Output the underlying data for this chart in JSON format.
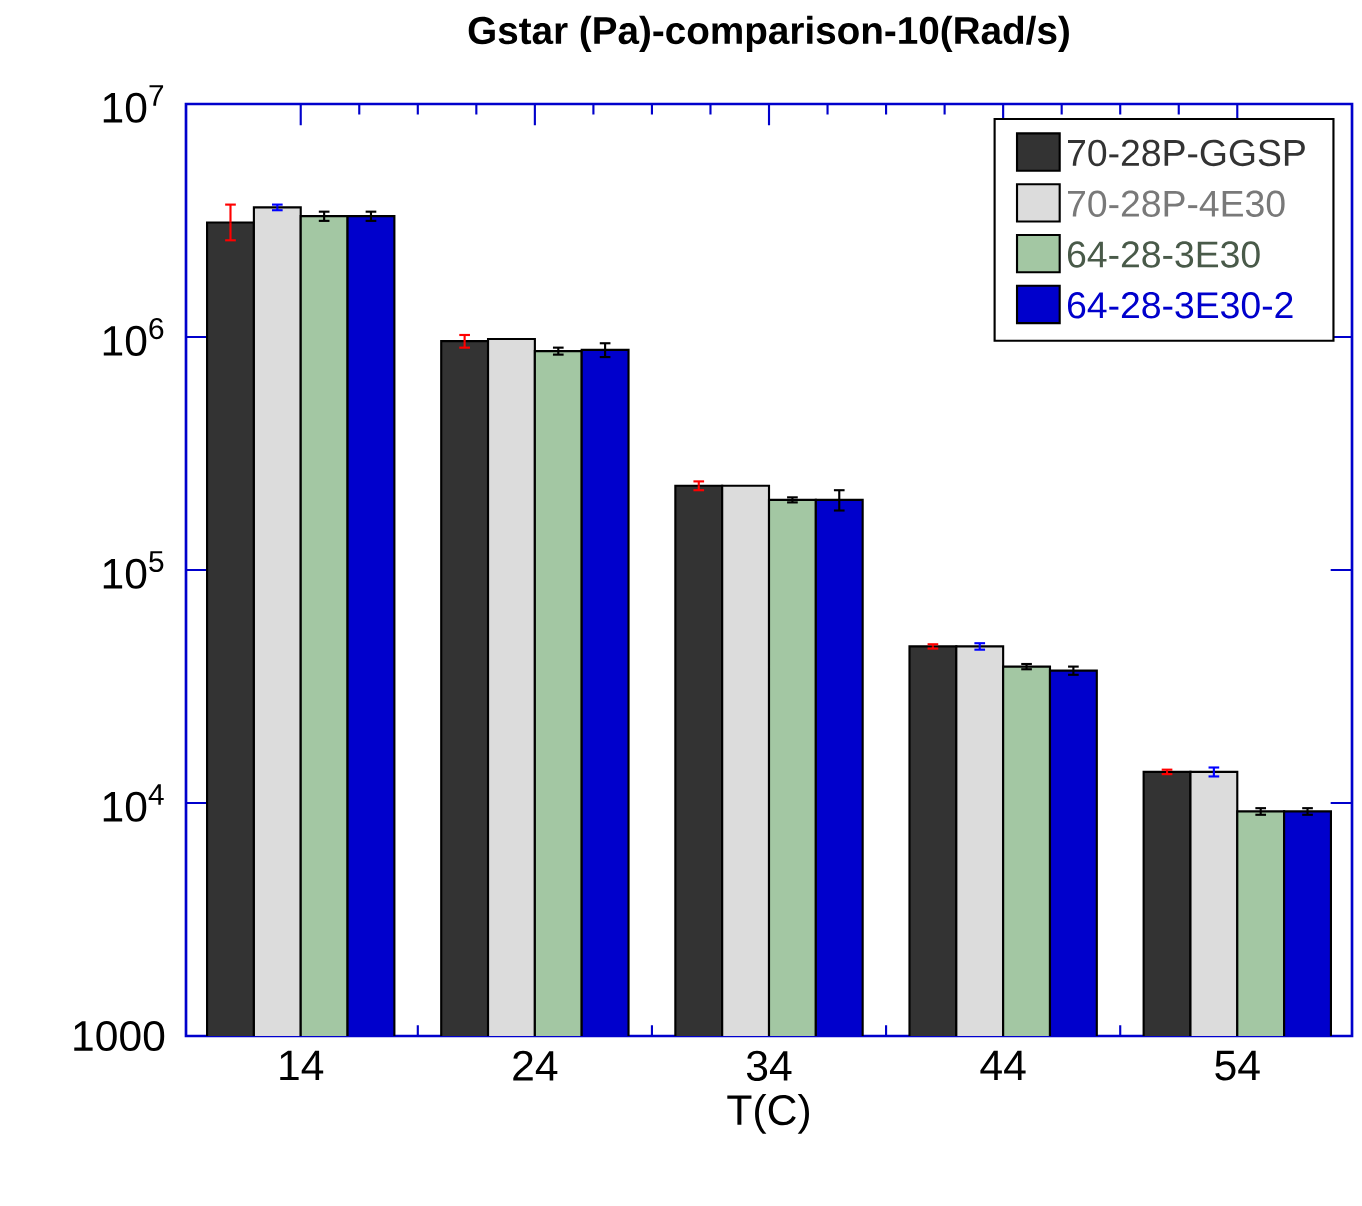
{
  "chart_data": {
    "type": "bar",
    "title": "Gstar (Pa)-comparison-10(Rad/s)",
    "xlabel": "T(C)",
    "categories": [
      "14",
      "24",
      "34",
      "44",
      "54"
    ],
    "series": [
      {
        "name": "70-28P-GGSP",
        "color": "#333333",
        "values": [
          3100000,
          960000,
          230000,
          47000,
          13600
        ],
        "errors": [
          [
            2600000,
            3700000
          ],
          60000,
          10000,
          1000,
          300
        ]
      },
      {
        "name": "70-28P-4E30",
        "color": "#dcdcdc",
        "values": [
          3600000,
          980000,
          230000,
          47000,
          13600
        ],
        "errors": [
          100000,
          null,
          null,
          1500,
          600
        ]
      },
      {
        "name": "64-28-3E30",
        "color": "#a3c7a3",
        "values": [
          3300000,
          870000,
          200000,
          38500,
          9200
        ],
        "errors": [
          150000,
          30000,
          5000,
          1000,
          300
        ]
      },
      {
        "name": "64-28-3E30-2",
        "color": "#0000cc",
        "values": [
          3300000,
          880000,
          200000,
          37000,
          9200
        ],
        "errors": [
          150000,
          60000,
          20000,
          1500,
          300
        ]
      }
    ],
    "log": "y",
    "ylim": [
      1000,
      10000000
    ],
    "yticks": [
      1000,
      {
        "value": 10000,
        "label": "10$^{4}$"
      },
      {
        "value": 100000,
        "label": "10$^{5}$"
      },
      {
        "value": 1000000,
        "label": "10$^{6}$"
      },
      {
        "value": 10000000,
        "label": "10$^{7}$"
      }
    ],
    "legend": "top right"
  }
}
